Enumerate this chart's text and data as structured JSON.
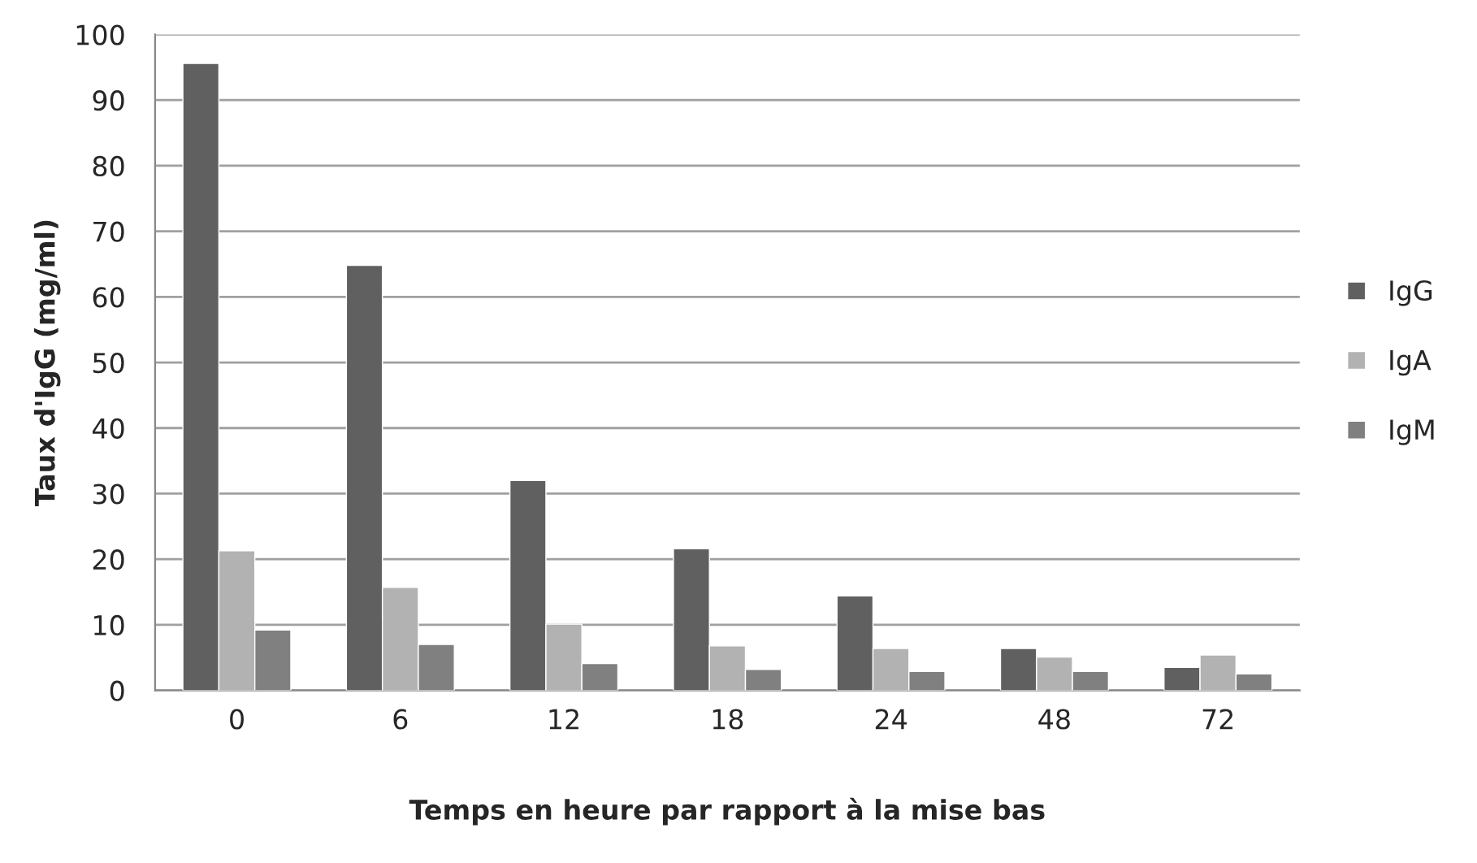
{
  "chart_data": {
    "type": "bar",
    "xlabel": "Temps en heure par rapport à la mise bas",
    "ylabel": "Taux d'IgG (mg/ml)",
    "categories": [
      "0",
      "6",
      "12",
      "18",
      "24",
      "48",
      "72"
    ],
    "series": [
      {
        "name": "IgG",
        "color": "#606060",
        "values": [
          95.6,
          64.8,
          32.0,
          21.6,
          14.4,
          6.4,
          3.5
        ]
      },
      {
        "name": "IgA",
        "color": "#b2b2b2",
        "values": [
          21.3,
          15.7,
          10.1,
          6.8,
          6.4,
          5.1,
          5.4
        ]
      },
      {
        "name": "IgM",
        "color": "#808080",
        "values": [
          9.2,
          7.0,
          4.1,
          3.2,
          2.9,
          2.9,
          2.5
        ]
      }
    ],
    "ylim": [
      0,
      100
    ],
    "yticks": [
      0,
      10,
      20,
      30,
      40,
      50,
      60,
      70,
      80,
      90,
      100
    ],
    "grid": "y",
    "legend": "right"
  }
}
